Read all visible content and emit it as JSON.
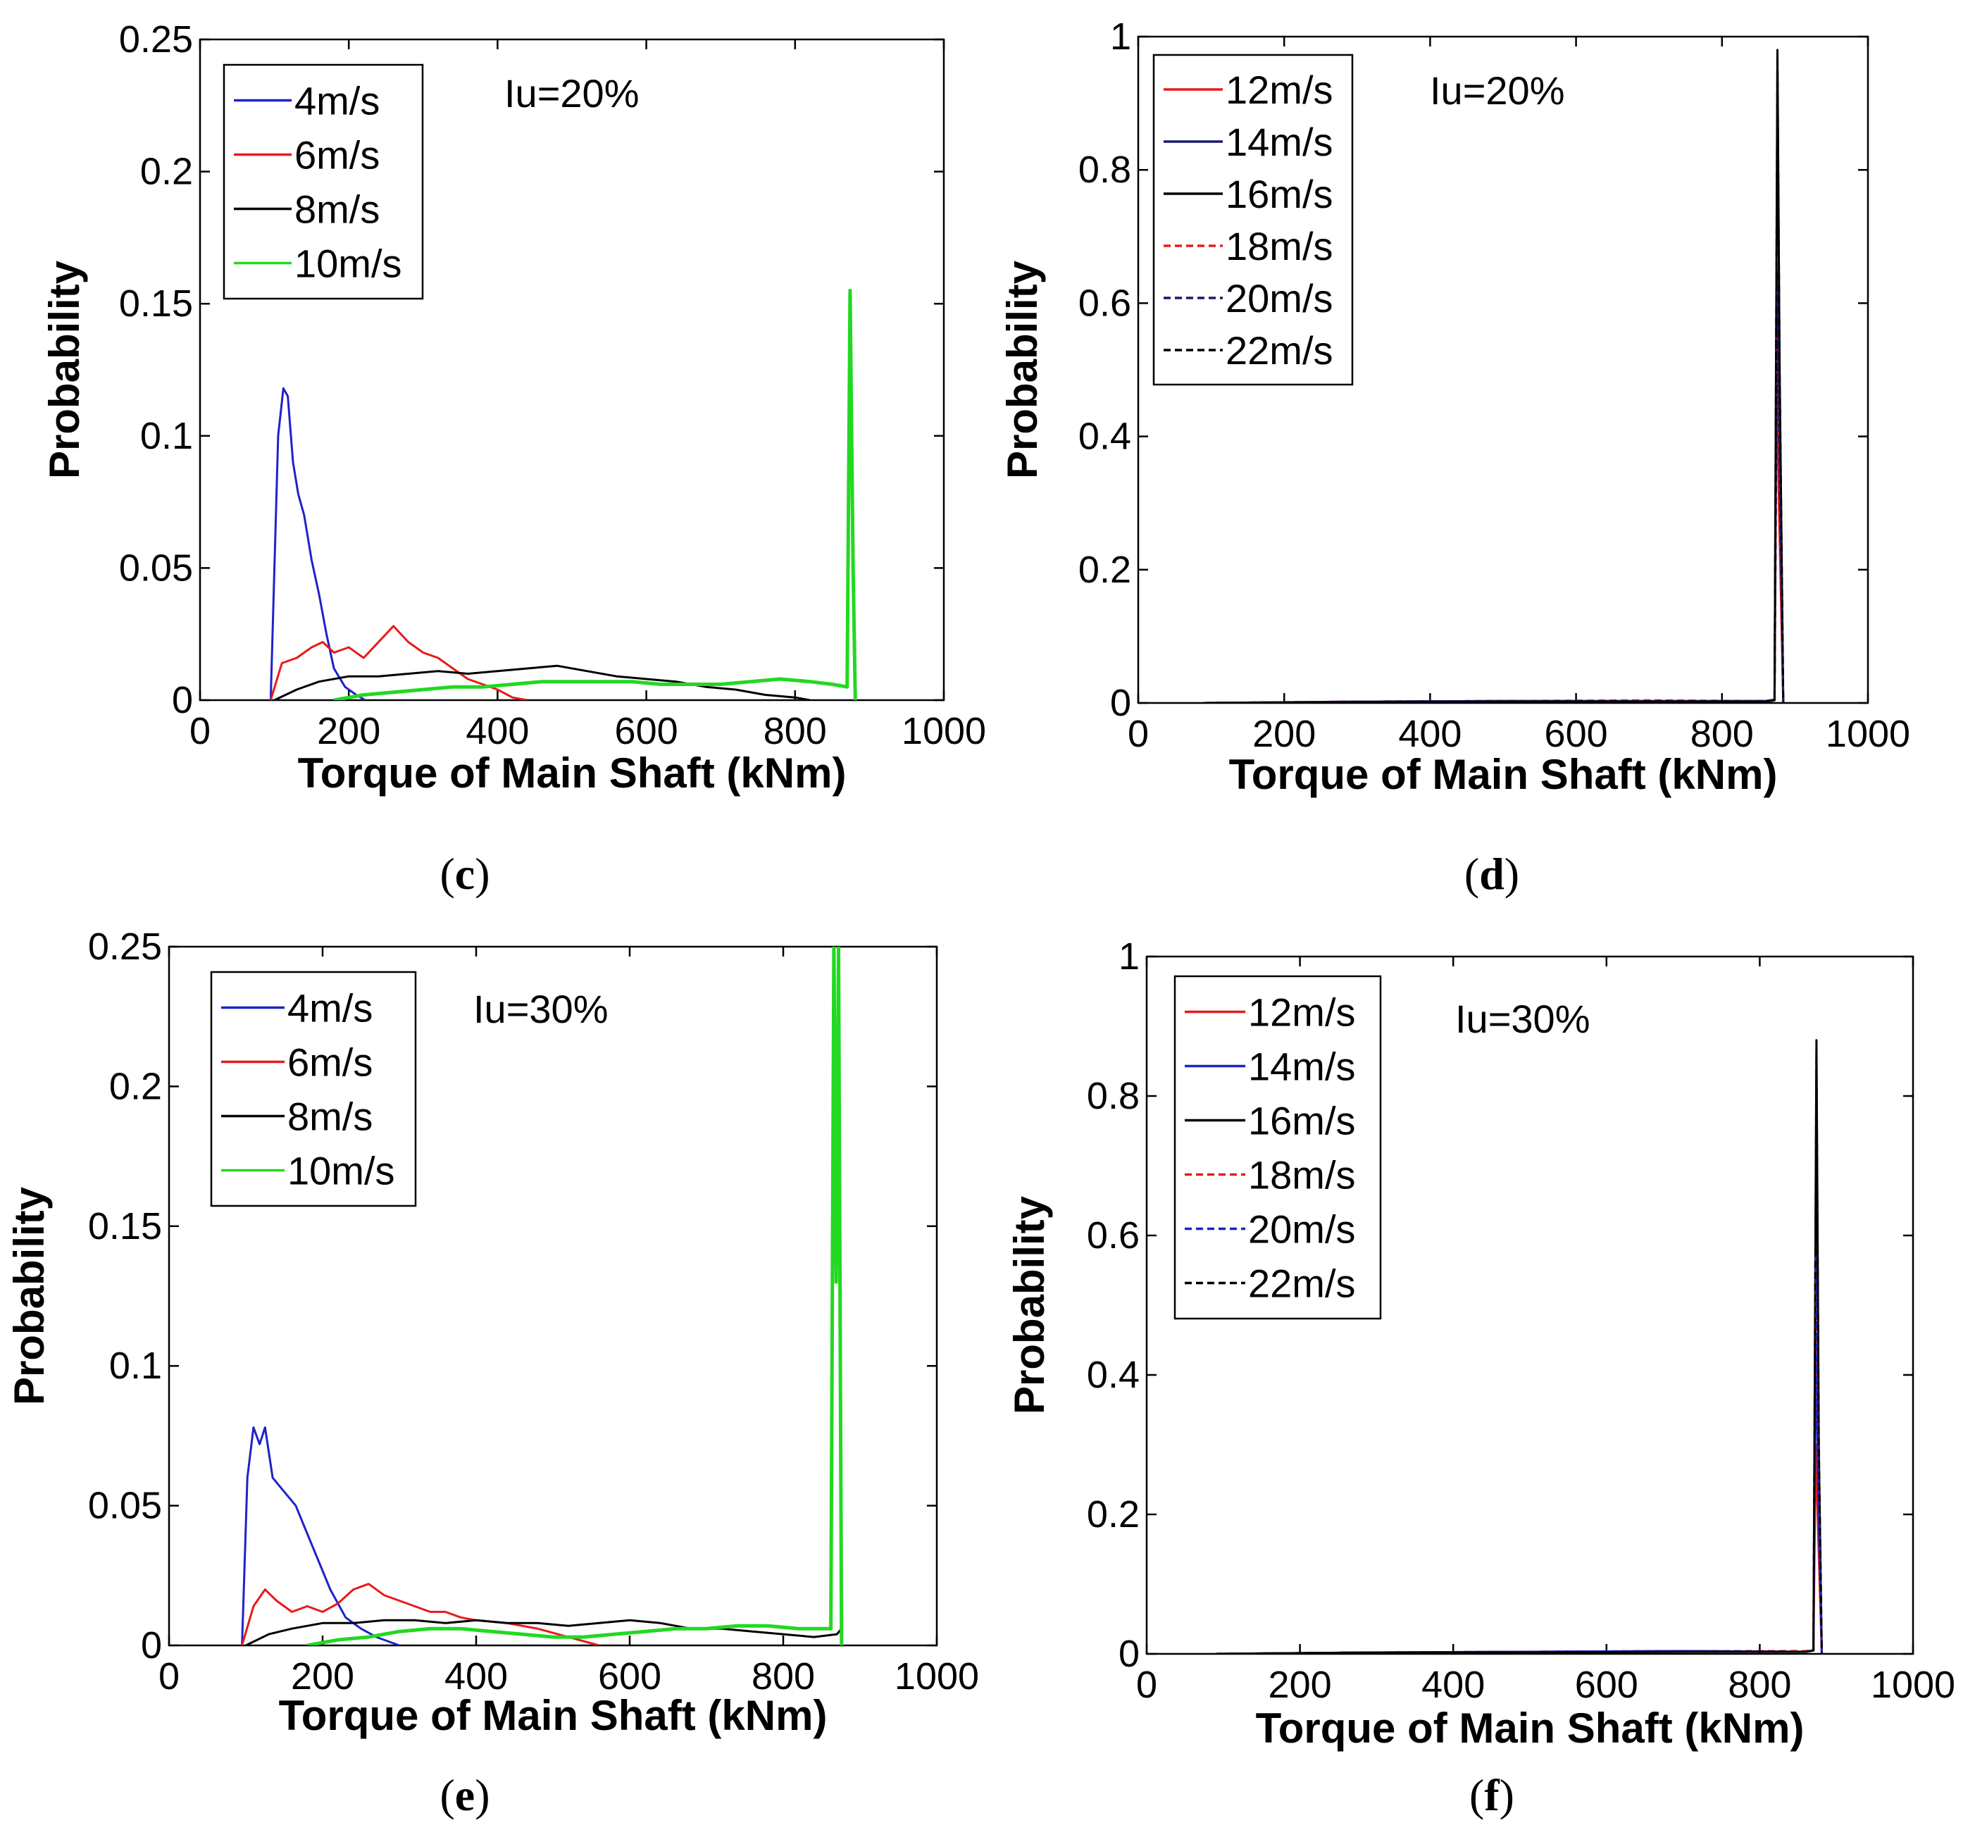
{
  "figure": {
    "panels": [
      {
        "id": "c",
        "caption_letter": "c"
      },
      {
        "id": "d",
        "caption_letter": "d"
      },
      {
        "id": "e",
        "caption_letter": "e"
      },
      {
        "id": "f",
        "caption_letter": "f"
      }
    ]
  },
  "chart_data": [
    {
      "id": "c",
      "type": "line",
      "annotation": "Iu=20%",
      "xlabel": "Torque of Main Shaft (kNm)",
      "ylabel": "Probability",
      "xlim": [
        0,
        1000
      ],
      "ylim": [
        0,
        0.25
      ],
      "xticks": [
        0,
        200,
        400,
        600,
        800,
        1000
      ],
      "xtick_labels": [
        "0",
        "200",
        "400",
        "600",
        "800",
        "1000"
      ],
      "yticks": [
        0,
        0.05,
        0.1,
        0.15,
        0.2,
        0.25
      ],
      "ytick_labels": [
        "0",
        "0.05",
        "0.1",
        "0.15",
        "0.2",
        "0.25"
      ],
      "legend": {
        "position": "top-left"
      },
      "series": [
        {
          "name": "4m/s",
          "color": "#1f22c8",
          "dash": "solid",
          "x": [
            95,
            105,
            112,
            118,
            125,
            132,
            140,
            150,
            160,
            170,
            180,
            195,
            210,
            222
          ],
          "y": [
            0,
            0.1,
            0.118,
            0.115,
            0.09,
            0.078,
            0.07,
            0.053,
            0.04,
            0.025,
            0.012,
            0.005,
            0.002,
            0
          ]
        },
        {
          "name": "6m/s",
          "color": "#e81a1a",
          "dash": "solid",
          "x": [
            95,
            110,
            130,
            150,
            165,
            180,
            200,
            220,
            240,
            260,
            280,
            300,
            320,
            340,
            360,
            380,
            400,
            420,
            440
          ],
          "y": [
            0,
            0.014,
            0.016,
            0.02,
            0.022,
            0.018,
            0.02,
            0.016,
            0.022,
            0.028,
            0.022,
            0.018,
            0.016,
            0.012,
            0.008,
            0.006,
            0.004,
            0.001,
            0
          ]
        },
        {
          "name": "8m/s",
          "color": "#000000",
          "dash": "solid",
          "x": [
            100,
            130,
            160,
            200,
            240,
            280,
            320,
            360,
            400,
            440,
            480,
            520,
            560,
            600,
            640,
            680,
            720,
            760,
            800,
            820
          ],
          "y": [
            0,
            0.004,
            0.007,
            0.009,
            0.009,
            0.01,
            0.011,
            0.01,
            0.011,
            0.012,
            0.013,
            0.011,
            0.009,
            0.008,
            0.007,
            0.005,
            0.004,
            0.002,
            0.001,
            0
          ]
        },
        {
          "name": "10m/s",
          "color": "#22d822",
          "dash": "solid",
          "x": [
            180,
            220,
            260,
            300,
            340,
            380,
            420,
            460,
            500,
            540,
            580,
            620,
            660,
            700,
            740,
            780,
            820,
            850,
            870,
            874,
            876,
            878,
            881
          ],
          "y": [
            0,
            0.002,
            0.003,
            0.004,
            0.005,
            0.005,
            0.006,
            0.007,
            0.007,
            0.007,
            0.007,
            0.006,
            0.006,
            0.006,
            0.007,
            0.008,
            0.007,
            0.006,
            0.005,
            0.155,
            0.1,
            0.05,
            0
          ]
        }
      ]
    },
    {
      "id": "d",
      "type": "line",
      "annotation": "Iu=20%",
      "xlabel": "Torque of Main Shaft (kNm)",
      "ylabel": "Probability",
      "xlim": [
        0,
        1000
      ],
      "ylim": [
        0,
        1
      ],
      "xticks": [
        0,
        200,
        400,
        600,
        800,
        1000
      ],
      "xtick_labels": [
        "0",
        "200",
        "400",
        "600",
        "800",
        "1000"
      ],
      "yticks": [
        0,
        0.2,
        0.4,
        0.6,
        0.8,
        1
      ],
      "ytick_labels": [
        "0",
        "0.2",
        "0.4",
        "0.6",
        "0.8",
        "1"
      ],
      "legend": {
        "position": "top-left"
      },
      "series": [
        {
          "name": "12m/s",
          "color": "#e81a1a",
          "dash": "solid",
          "x": [
            90,
            300,
            500,
            700,
            860,
            872,
            875,
            878,
            884
          ],
          "y": [
            0,
            0.002,
            0.003,
            0.003,
            0.003,
            0.005,
            0.52,
            0.3,
            0
          ]
        },
        {
          "name": "14m/s",
          "color": "#1a1a6e",
          "dash": "solid",
          "x": [
            90,
            300,
            500,
            700,
            860,
            872,
            875,
            878,
            884
          ],
          "y": [
            0,
            0.002,
            0.003,
            0.003,
            0.003,
            0.005,
            0.65,
            0.4,
            0
          ]
        },
        {
          "name": "16m/s",
          "color": "#000000",
          "dash": "solid",
          "x": [
            90,
            300,
            500,
            700,
            860,
            872,
            876,
            879,
            884
          ],
          "y": [
            0,
            0.001,
            0.002,
            0.002,
            0.002,
            0.004,
            0.98,
            0.5,
            0
          ]
        },
        {
          "name": "18m/s",
          "color": "#e81a1a",
          "dash": "dashed",
          "x": [
            90,
            300,
            500,
            700,
            860,
            872,
            875,
            878,
            884
          ],
          "y": [
            0,
            0.002,
            0.003,
            0.004,
            0.003,
            0.005,
            0.55,
            0.3,
            0
          ]
        },
        {
          "name": "20m/s",
          "color": "#1a1a6e",
          "dash": "dashed",
          "x": [
            90,
            300,
            500,
            700,
            860,
            872,
            876,
            879,
            884
          ],
          "y": [
            0,
            0.002,
            0.003,
            0.003,
            0.003,
            0.005,
            0.62,
            0.35,
            0
          ]
        },
        {
          "name": "22m/s",
          "color": "#000000",
          "dash": "dashed",
          "x": [
            90,
            300,
            500,
            700,
            860,
            872,
            876,
            879,
            884
          ],
          "y": [
            0,
            0.001,
            0.002,
            0.002,
            0.002,
            0.004,
            0.97,
            0.5,
            0
          ]
        }
      ]
    },
    {
      "id": "e",
      "type": "line",
      "annotation": "Iu=30%",
      "xlabel": "Torque of Main Shaft (kNm)",
      "ylabel": "Probability",
      "xlim": [
        0,
        1000
      ],
      "ylim": [
        0,
        0.25
      ],
      "xticks": [
        0,
        200,
        400,
        600,
        800,
        1000
      ],
      "xtick_labels": [
        "0",
        "200",
        "400",
        "600",
        "800",
        "1000"
      ],
      "yticks": [
        0,
        0.05,
        0.1,
        0.15,
        0.2,
        0.25
      ],
      "ytick_labels": [
        "0",
        "0.05",
        "0.1",
        "0.15",
        "0.2",
        "0.25"
      ],
      "legend": {
        "position": "top-left"
      },
      "series": [
        {
          "name": "4m/s",
          "color": "#1f22c8",
          "dash": "solid",
          "x": [
            95,
            102,
            110,
            118,
            125,
            135,
            150,
            165,
            180,
            195,
            210,
            230,
            250,
            270,
            300
          ],
          "y": [
            0,
            0.06,
            0.078,
            0.072,
            0.078,
            0.06,
            0.055,
            0.05,
            0.04,
            0.03,
            0.02,
            0.01,
            0.006,
            0.003,
            0
          ]
        },
        {
          "name": "6m/s",
          "color": "#e81a1a",
          "dash": "solid",
          "x": [
            95,
            110,
            125,
            140,
            160,
            180,
            200,
            220,
            240,
            260,
            280,
            300,
            320,
            340,
            360,
            380,
            400,
            440,
            480,
            520,
            560
          ],
          "y": [
            0,
            0.014,
            0.02,
            0.016,
            0.012,
            0.014,
            0.012,
            0.015,
            0.02,
            0.022,
            0.018,
            0.016,
            0.014,
            0.012,
            0.012,
            0.01,
            0.009,
            0.008,
            0.006,
            0.003,
            0
          ]
        },
        {
          "name": "8m/s",
          "color": "#000000",
          "dash": "solid",
          "x": [
            100,
            130,
            160,
            200,
            240,
            280,
            320,
            360,
            400,
            440,
            480,
            520,
            560,
            600,
            640,
            680,
            720,
            760,
            800,
            840,
            870,
            876
          ],
          "y": [
            0,
            0.004,
            0.006,
            0.008,
            0.008,
            0.009,
            0.009,
            0.008,
            0.009,
            0.008,
            0.008,
            0.007,
            0.008,
            0.009,
            0.008,
            0.006,
            0.006,
            0.005,
            0.004,
            0.003,
            0.004,
            0.006
          ]
        },
        {
          "name": "10m/s",
          "color": "#22d822",
          "dash": "solid",
          "x": [
            180,
            220,
            260,
            300,
            340,
            380,
            420,
            460,
            500,
            540,
            580,
            620,
            660,
            700,
            740,
            780,
            820,
            850,
            862,
            866,
            869,
            872,
            876
          ],
          "y": [
            0,
            0.002,
            0.003,
            0.005,
            0.006,
            0.006,
            0.005,
            0.004,
            0.003,
            0.003,
            0.004,
            0.005,
            0.006,
            0.006,
            0.007,
            0.007,
            0.006,
            0.006,
            0.006,
            0.25,
            0.13,
            0.25,
            0
          ]
        }
      ]
    },
    {
      "id": "f",
      "type": "line",
      "annotation": "Iu=30%",
      "xlabel": "Torque of Main Shaft (kNm)",
      "ylabel": "Probability",
      "xlim": [
        0,
        1000
      ],
      "ylim": [
        0,
        1
      ],
      "xticks": [
        0,
        200,
        400,
        600,
        800,
        1000
      ],
      "xtick_labels": [
        "0",
        "200",
        "400",
        "600",
        "800",
        "1000"
      ],
      "yticks": [
        0,
        0.2,
        0.4,
        0.6,
        0.8,
        1
      ],
      "ytick_labels": [
        "0",
        "0.2",
        "0.4",
        "0.6",
        "0.8",
        "1"
      ],
      "legend": {
        "position": "top-left"
      },
      "series": [
        {
          "name": "12m/s",
          "color": "#e81a1a",
          "dash": "solid",
          "x": [
            90,
            300,
            500,
            700,
            860,
            870,
            873,
            876,
            881
          ],
          "y": [
            0,
            0.002,
            0.003,
            0.004,
            0.003,
            0.005,
            0.3,
            0.18,
            0
          ]
        },
        {
          "name": "14m/s",
          "color": "#1f22c8",
          "dash": "solid",
          "x": [
            90,
            300,
            500,
            700,
            860,
            870,
            873,
            876,
            881
          ],
          "y": [
            0,
            0.002,
            0.003,
            0.004,
            0.003,
            0.005,
            0.45,
            0.25,
            0
          ]
        },
        {
          "name": "16m/s",
          "color": "#000000",
          "dash": "solid",
          "x": [
            90,
            300,
            500,
            700,
            860,
            870,
            874,
            877,
            881
          ],
          "y": [
            0,
            0.002,
            0.002,
            0.003,
            0.003,
            0.005,
            0.88,
            0.3,
            0
          ]
        },
        {
          "name": "18m/s",
          "color": "#e81a1a",
          "dash": "dashed",
          "x": [
            90,
            300,
            500,
            700,
            860,
            870,
            873,
            876,
            881
          ],
          "y": [
            0,
            0.002,
            0.003,
            0.004,
            0.004,
            0.005,
            0.57,
            0.3,
            0
          ]
        },
        {
          "name": "20m/s",
          "color": "#1f22c8",
          "dash": "dashed",
          "x": [
            90,
            300,
            500,
            700,
            860,
            870,
            873,
            876,
            881
          ],
          "y": [
            0,
            0.002,
            0.003,
            0.004,
            0.003,
            0.005,
            0.58,
            0.28,
            0
          ]
        },
        {
          "name": "22m/s",
          "color": "#000000",
          "dash": "dashed",
          "x": [
            90,
            300,
            500,
            700,
            860,
            870,
            874,
            877,
            881
          ],
          "y": [
            0,
            0.002,
            0.002,
            0.003,
            0.003,
            0.005,
            0.86,
            0.3,
            0
          ]
        }
      ]
    }
  ]
}
